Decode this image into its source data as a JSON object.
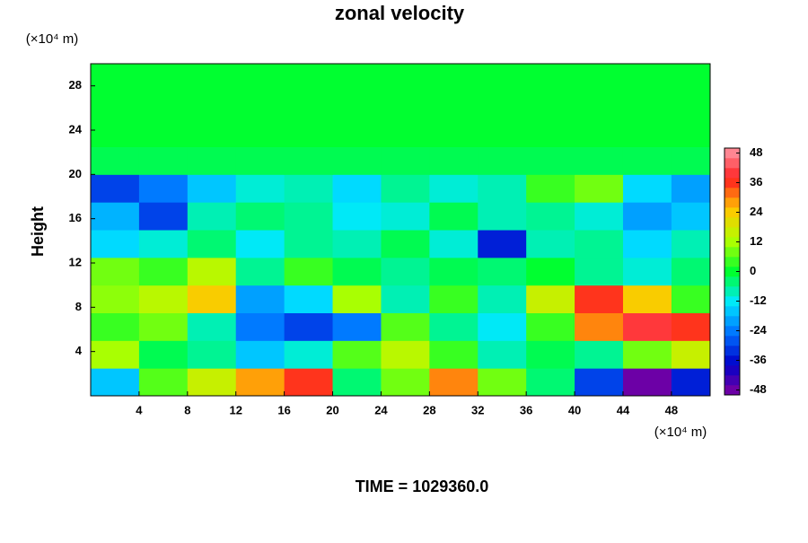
{
  "chart_data": {
    "type": "heatmap",
    "title": "zonal velocity",
    "x_unit_label": "(×10⁴ m)",
    "y_unit_label": "(×10⁴ m)",
    "ylabel": "Height",
    "footer": "TIME = 1029360.0",
    "xlim": [
      0,
      51.2
    ],
    "ylim": [
      0,
      30
    ],
    "xticks": [
      4,
      8,
      12,
      16,
      20,
      24,
      28,
      32,
      36,
      40,
      44,
      48
    ],
    "yticks": [
      4,
      8,
      12,
      16,
      20,
      24,
      28
    ],
    "x": [
      2,
      6,
      10,
      14,
      18,
      22,
      26,
      30,
      34,
      38,
      42,
      46,
      50
    ],
    "y": [
      1.25,
      3.75,
      6.25,
      8.75,
      11.25,
      13.75,
      16.25,
      18.75,
      21.25,
      23.75,
      26.25,
      28.75
    ],
    "values": [
      [
        -16,
        6,
        16,
        28,
        36,
        -4,
        8,
        30,
        8,
        -4,
        -30,
        -48,
        -34
      ],
      [
        12,
        -2,
        -6,
        -16,
        -10,
        6,
        14,
        4,
        -8,
        -2,
        -6,
        8,
        16
      ],
      [
        4,
        8,
        -8,
        -24,
        -30,
        -24,
        6,
        -6,
        -12,
        4,
        30,
        40,
        36
      ],
      [
        10,
        14,
        24,
        -20,
        -14,
        12,
        -8,
        4,
        -8,
        16,
        36,
        24,
        4
      ],
      [
        8,
        4,
        14,
        -6,
        4,
        -2,
        -6,
        -2,
        -4,
        0,
        -6,
        -10,
        -4
      ],
      [
        -14,
        -10,
        -4,
        -12,
        -6,
        -8,
        -2,
        -10,
        -34,
        -8,
        -6,
        -14,
        -8
      ],
      [
        -18,
        -30,
        -8,
        -4,
        -6,
        -12,
        -10,
        -2,
        -8,
        -6,
        -10,
        -20,
        -16
      ],
      [
        -30,
        -24,
        -16,
        -10,
        -8,
        -14,
        -6,
        -10,
        -8,
        4,
        8,
        -14,
        -20
      ],
      [
        -2,
        -2,
        -2,
        -2,
        -2,
        -2,
        -2,
        -2,
        -2,
        -2,
        -2,
        -2,
        -2
      ],
      [
        0,
        0,
        0,
        0,
        0,
        0,
        0,
        0,
        0,
        0,
        0,
        0,
        0
      ],
      [
        0,
        0,
        0,
        0,
        0,
        0,
        0,
        0,
        0,
        0,
        0,
        0,
        0
      ],
      [
        0,
        0,
        0,
        0,
        0,
        0,
        0,
        0,
        0,
        0,
        0,
        0,
        0
      ]
    ],
    "clim": [
      -50,
      50
    ],
    "cticks": [
      -48,
      -36,
      -24,
      -12,
      0,
      12,
      24,
      36,
      48
    ],
    "colormap": [
      "#8000a0",
      "#0000c8",
      "#0070ff",
      "#00e8ff",
      "#00ff30",
      "#b0ff00",
      "#ffc800",
      "#ff2020",
      "#ff9aa8"
    ]
  }
}
